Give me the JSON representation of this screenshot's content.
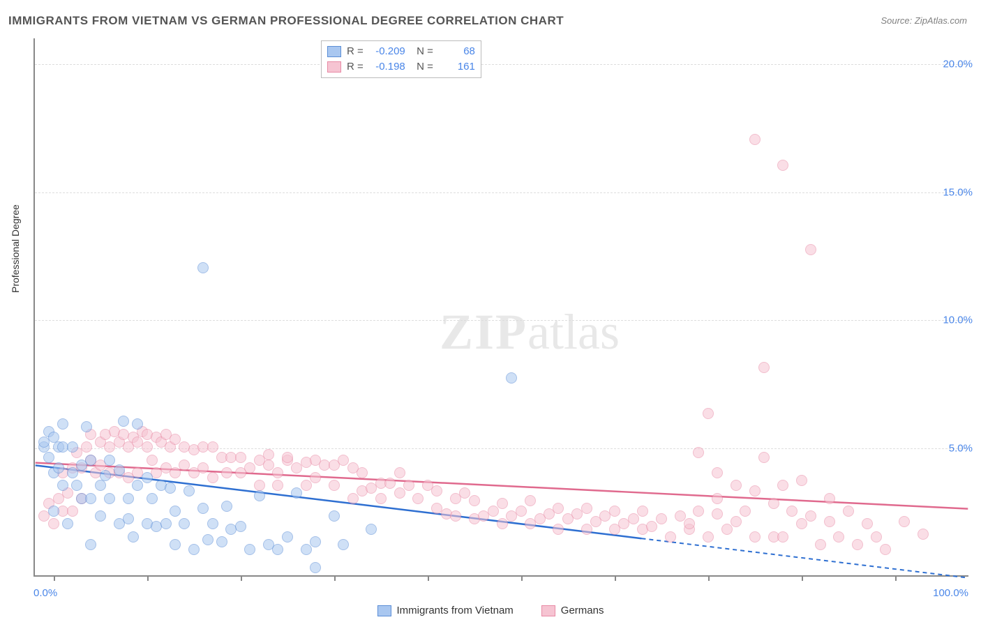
{
  "title": "IMMIGRANTS FROM VIETNAM VS GERMAN PROFESSIONAL DEGREE CORRELATION CHART",
  "source_label": "Source: ZipAtlas.com",
  "ylabel": "Professional Degree",
  "watermark_a": "ZIP",
  "watermark_b": "atlas",
  "chart": {
    "type": "scatter",
    "background_color": "#ffffff",
    "grid_color": "#dddddd",
    "axis_color": "#888888",
    "xlim": [
      0,
      100
    ],
    "ylim": [
      0,
      21
    ],
    "yticks": [
      5,
      10,
      15,
      20
    ],
    "ytick_labels": [
      "5.0%",
      "10.0%",
      "15.0%",
      "20.0%"
    ],
    "xtick_positions": [
      2,
      12,
      22,
      32,
      42,
      52,
      62,
      72,
      82,
      92
    ],
    "x_origin_label": "0.0%",
    "x_max_label": "100.0%",
    "marker_radius": 8,
    "marker_opacity": 0.55,
    "label_fontsize": 15,
    "axis_label_color": "#4a86e8"
  },
  "series": [
    {
      "key": "vietnam",
      "label": "Immigrants from Vietnam",
      "fill": "#a9c7f0",
      "stroke": "#5b8ed6",
      "line_color": "#2e6fd1",
      "R": "-0.209",
      "N": "68",
      "trend": {
        "x1": 0,
        "y1": 4.3,
        "x2": 100,
        "y2": -0.1,
        "dash_from_x": 65
      },
      "data": [
        [
          1,
          5.0
        ],
        [
          1,
          5.2
        ],
        [
          1.5,
          4.6
        ],
        [
          1.5,
          5.6
        ],
        [
          2,
          5.4
        ],
        [
          2,
          4.0
        ],
        [
          2,
          2.5
        ],
        [
          2.5,
          5.0
        ],
        [
          2.5,
          4.2
        ],
        [
          3,
          5.0
        ],
        [
          3,
          5.9
        ],
        [
          3,
          3.5
        ],
        [
          3.5,
          2.0
        ],
        [
          4,
          4.0
        ],
        [
          4,
          5.0
        ],
        [
          4.5,
          3.5
        ],
        [
          5,
          3.0
        ],
        [
          5,
          4.3
        ],
        [
          5.5,
          5.8
        ],
        [
          6,
          3.0
        ],
        [
          6,
          4.5
        ],
        [
          6,
          1.2
        ],
        [
          7,
          3.5
        ],
        [
          7,
          2.3
        ],
        [
          7.5,
          3.9
        ],
        [
          8,
          3.0
        ],
        [
          8,
          4.5
        ],
        [
          9,
          2.0
        ],
        [
          9,
          4.1
        ],
        [
          9.5,
          6.0
        ],
        [
          10,
          2.2
        ],
        [
          10,
          3.0
        ],
        [
          10.5,
          1.5
        ],
        [
          11,
          3.5
        ],
        [
          11,
          5.9
        ],
        [
          12,
          3.8
        ],
        [
          12,
          2.0
        ],
        [
          12.5,
          3.0
        ],
        [
          13,
          1.9
        ],
        [
          13.5,
          3.5
        ],
        [
          14,
          2.0
        ],
        [
          14.5,
          3.4
        ],
        [
          15,
          2.5
        ],
        [
          15,
          1.2
        ],
        [
          16,
          2.0
        ],
        [
          16.5,
          3.3
        ],
        [
          17,
          1.0
        ],
        [
          18,
          2.6
        ],
        [
          18.5,
          1.4
        ],
        [
          19,
          2.0
        ],
        [
          20,
          1.3
        ],
        [
          20.5,
          2.7
        ],
        [
          21,
          1.8
        ],
        [
          22,
          1.9
        ],
        [
          23,
          1.0
        ],
        [
          24,
          3.1
        ],
        [
          25,
          1.2
        ],
        [
          26,
          1.0
        ],
        [
          27,
          1.5
        ],
        [
          28,
          3.2
        ],
        [
          29,
          1.0
        ],
        [
          30,
          1.3
        ],
        [
          30,
          0.3
        ],
        [
          32,
          2.3
        ],
        [
          33,
          1.2
        ],
        [
          36,
          1.8
        ],
        [
          18,
          12.0
        ],
        [
          51,
          7.7
        ]
      ]
    },
    {
      "key": "german",
      "label": "Germans",
      "fill": "#f6c4d2",
      "stroke": "#e88aa5",
      "line_color": "#e06a8e",
      "R": "-0.198",
      "N": "161",
      "trend": {
        "x1": 0,
        "y1": 4.4,
        "x2": 100,
        "y2": 2.6,
        "dash_from_x": null
      },
      "data": [
        [
          1,
          2.3
        ],
        [
          1.5,
          2.8
        ],
        [
          2,
          2.0
        ],
        [
          2.5,
          3.0
        ],
        [
          3,
          2.5
        ],
        [
          3,
          4.0
        ],
        [
          3.5,
          3.2
        ],
        [
          4,
          4.2
        ],
        [
          4,
          2.5
        ],
        [
          4.5,
          4.8
        ],
        [
          5,
          4.2
        ],
        [
          5,
          3.0
        ],
        [
          5.5,
          5.0
        ],
        [
          6,
          4.5
        ],
        [
          6,
          5.5
        ],
        [
          6.5,
          4.0
        ],
        [
          7,
          5.2
        ],
        [
          7,
          4.3
        ],
        [
          7.5,
          5.5
        ],
        [
          8,
          5.0
        ],
        [
          8,
          4.0
        ],
        [
          8.5,
          5.6
        ],
        [
          9,
          5.2
        ],
        [
          9,
          4.0
        ],
        [
          9.5,
          5.5
        ],
        [
          10,
          5.0
        ],
        [
          10,
          3.8
        ],
        [
          10.5,
          5.4
        ],
        [
          11,
          5.2
        ],
        [
          11,
          4.0
        ],
        [
          11.5,
          5.6
        ],
        [
          12,
          5.0
        ],
        [
          12,
          5.5
        ],
        [
          12.5,
          4.5
        ],
        [
          13,
          5.4
        ],
        [
          13,
          4.0
        ],
        [
          13.5,
          5.2
        ],
        [
          14,
          5.5
        ],
        [
          14,
          4.2
        ],
        [
          14.5,
          5.0
        ],
        [
          15,
          5.3
        ],
        [
          15,
          4.0
        ],
        [
          16,
          5.0
        ],
        [
          16,
          4.3
        ],
        [
          17,
          4.9
        ],
        [
          17,
          4.0
        ],
        [
          18,
          5.0
        ],
        [
          18,
          4.2
        ],
        [
          19,
          5.0
        ],
        [
          19,
          3.8
        ],
        [
          20,
          4.6
        ],
        [
          20.5,
          4.0
        ],
        [
          21,
          4.6
        ],
        [
          22,
          4.0
        ],
        [
          22,
          4.6
        ],
        [
          23,
          4.2
        ],
        [
          24,
          4.5
        ],
        [
          24,
          3.5
        ],
        [
          25,
          4.3
        ],
        [
          25,
          4.7
        ],
        [
          26,
          4.0
        ],
        [
          26,
          3.5
        ],
        [
          27,
          4.5
        ],
        [
          27,
          4.6
        ],
        [
          28,
          4.2
        ],
        [
          29,
          4.4
        ],
        [
          29,
          3.5
        ],
        [
          30,
          3.8
        ],
        [
          30,
          4.5
        ],
        [
          31,
          4.3
        ],
        [
          32,
          3.5
        ],
        [
          32,
          4.3
        ],
        [
          33,
          4.5
        ],
        [
          34,
          3.0
        ],
        [
          34,
          4.2
        ],
        [
          35,
          3.3
        ],
        [
          35,
          4.0
        ],
        [
          36,
          3.4
        ],
        [
          37,
          3.6
        ],
        [
          37,
          3.0
        ],
        [
          38,
          3.6
        ],
        [
          39,
          4.0
        ],
        [
          39,
          3.2
        ],
        [
          40,
          3.5
        ],
        [
          41,
          3.0
        ],
        [
          42,
          3.5
        ],
        [
          43,
          2.6
        ],
        [
          43,
          3.3
        ],
        [
          44,
          2.4
        ],
        [
          45,
          3.0
        ],
        [
          45,
          2.3
        ],
        [
          46,
          3.2
        ],
        [
          47,
          2.2
        ],
        [
          47,
          2.9
        ],
        [
          48,
          2.3
        ],
        [
          49,
          2.5
        ],
        [
          50,
          2.0
        ],
        [
          50,
          2.8
        ],
        [
          51,
          2.3
        ],
        [
          52,
          2.5
        ],
        [
          53,
          2.0
        ],
        [
          53,
          2.9
        ],
        [
          54,
          2.2
        ],
        [
          55,
          2.4
        ],
        [
          56,
          1.8
        ],
        [
          56,
          2.6
        ],
        [
          57,
          2.2
        ],
        [
          58,
          2.4
        ],
        [
          59,
          1.8
        ],
        [
          59,
          2.6
        ],
        [
          60,
          2.1
        ],
        [
          61,
          2.3
        ],
        [
          62,
          1.8
        ],
        [
          62,
          2.5
        ],
        [
          63,
          2.0
        ],
        [
          64,
          2.2
        ],
        [
          65,
          1.8
        ],
        [
          65,
          2.5
        ],
        [
          66,
          1.9
        ],
        [
          67,
          2.2
        ],
        [
          68,
          1.5
        ],
        [
          69,
          2.3
        ],
        [
          70,
          1.8
        ],
        [
          70,
          2.0
        ],
        [
          71,
          2.5
        ],
        [
          72,
          1.5
        ],
        [
          73,
          2.4
        ],
        [
          73,
          3.0
        ],
        [
          74,
          1.8
        ],
        [
          75,
          2.1
        ],
        [
          75,
          3.5
        ],
        [
          76,
          2.5
        ],
        [
          77,
          1.5
        ],
        [
          77,
          3.3
        ],
        [
          78,
          4.6
        ],
        [
          79,
          1.5
        ],
        [
          79,
          2.8
        ],
        [
          80,
          3.5
        ],
        [
          80,
          1.5
        ],
        [
          81,
          2.5
        ],
        [
          82,
          2.0
        ],
        [
          82,
          3.7
        ],
        [
          83,
          2.3
        ],
        [
          84,
          1.2
        ],
        [
          85,
          2.1
        ],
        [
          85,
          3.0
        ],
        [
          86,
          1.5
        ],
        [
          87,
          2.5
        ],
        [
          88,
          1.2
        ],
        [
          89,
          2.0
        ],
        [
          90,
          1.5
        ],
        [
          91,
          1.0
        ],
        [
          93,
          2.1
        ],
        [
          95,
          1.6
        ],
        [
          72,
          6.3
        ],
        [
          78,
          8.1
        ],
        [
          77,
          17.0
        ],
        [
          80,
          16.0
        ],
        [
          83,
          12.7
        ],
        [
          71,
          4.8
        ],
        [
          73,
          4.0
        ]
      ]
    }
  ]
}
